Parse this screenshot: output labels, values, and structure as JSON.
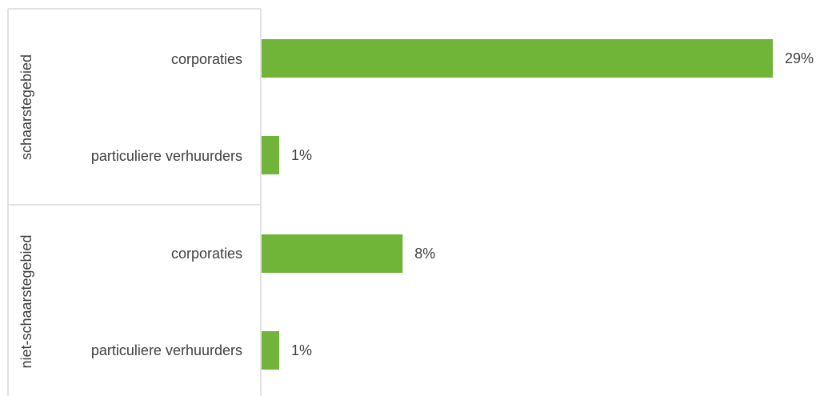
{
  "chart_data": {
    "type": "bar",
    "orientation": "horizontal",
    "title": "",
    "xlabel": "",
    "ylabel": "",
    "bar_color": "#70b538",
    "xlim": [
      0,
      30
    ],
    "groups": [
      {
        "name": "schaarstegebied",
        "categories": [
          "corporaties",
          "particuliere verhuurders"
        ],
        "values": [
          29,
          1
        ],
        "labels": [
          "29%",
          "1%"
        ]
      },
      {
        "name": "niet-schaarstegebied",
        "categories": [
          "corporaties",
          "particuliere verhuurders"
        ],
        "values": [
          8,
          1
        ],
        "labels": [
          "8%",
          "1%"
        ]
      }
    ],
    "grid": false,
    "legend": "none"
  }
}
